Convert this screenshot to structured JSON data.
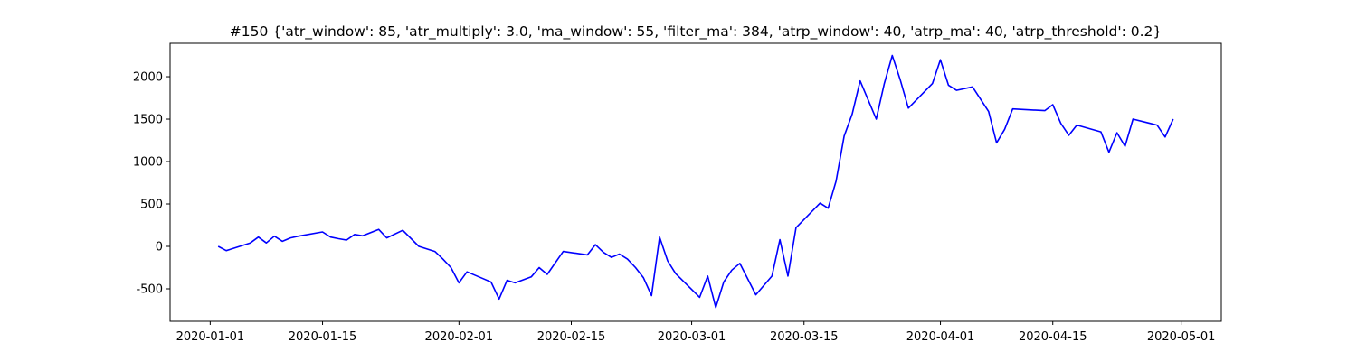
{
  "chart_data": {
    "type": "line",
    "title": "#150 {'atr_window': 85, 'atr_multiply': 3.0, 'ma_window': 55, 'filter_ma': 384, 'atrp_window': 40, 'atrp_ma': 40, 'atrp_threshold': 0.2}",
    "x": [
      "2020-01-02",
      "2020-01-03",
      "2020-01-04",
      "2020-01-06",
      "2020-01-07",
      "2020-01-08",
      "2020-01-09",
      "2020-01-10",
      "2020-01-11",
      "2020-01-12",
      "2020-01-15",
      "2020-01-16",
      "2020-01-17",
      "2020-01-18",
      "2020-01-19",
      "2020-01-20",
      "2020-01-22",
      "2020-01-23",
      "2020-01-25",
      "2020-01-27",
      "2020-01-29",
      "2020-01-30",
      "2020-01-31",
      "2020-02-01",
      "2020-02-02",
      "2020-02-04",
      "2020-02-05",
      "2020-02-06",
      "2020-02-07",
      "2020-02-08",
      "2020-02-10",
      "2020-02-11",
      "2020-02-12",
      "2020-02-14",
      "2020-02-17",
      "2020-02-18",
      "2020-02-19",
      "2020-02-20",
      "2020-02-21",
      "2020-02-22",
      "2020-02-23",
      "2020-02-24",
      "2020-02-25",
      "2020-02-26",
      "2020-02-27",
      "2020-02-28",
      "2020-03-02",
      "2020-03-03",
      "2020-03-04",
      "2020-03-05",
      "2020-03-06",
      "2020-03-07",
      "2020-03-09",
      "2020-03-11",
      "2020-03-12",
      "2020-03-13",
      "2020-03-14",
      "2020-03-17",
      "2020-03-18",
      "2020-03-19",
      "2020-03-20",
      "2020-03-21",
      "2020-03-22",
      "2020-03-24",
      "2020-03-25",
      "2020-03-26",
      "2020-03-27",
      "2020-03-28",
      "2020-03-31",
      "2020-04-01",
      "2020-04-02",
      "2020-04-03",
      "2020-04-05",
      "2020-04-07",
      "2020-04-08",
      "2020-04-09",
      "2020-04-10",
      "2020-04-14",
      "2020-04-15",
      "2020-04-16",
      "2020-04-17",
      "2020-04-18",
      "2020-04-21",
      "2020-04-22",
      "2020-04-23",
      "2020-04-24",
      "2020-04-25",
      "2020-04-28",
      "2020-04-29",
      "2020-04-30"
    ],
    "series": [
      {
        "color": "#0000ff",
        "values": [
          0,
          -50,
          -20,
          40,
          110,
          40,
          120,
          60,
          100,
          120,
          170,
          110,
          90,
          75,
          140,
          125,
          200,
          100,
          190,
          0,
          -60,
          -150,
          -250,
          -430,
          -300,
          -380,
          -420,
          -620,
          -400,
          -430,
          -360,
          -250,
          -330,
          -60,
          -100,
          20,
          -70,
          -130,
          -90,
          -150,
          -250,
          -370,
          -580,
          110,
          -170,
          -320,
          -600,
          -350,
          -720,
          -420,
          -280,
          -200,
          -570,
          -350,
          80,
          -350,
          220,
          510,
          450,
          770,
          1300,
          1560,
          1950,
          1500,
          1920,
          2250,
          1960,
          1630,
          1920,
          2200,
          1900,
          1840,
          1880,
          1590,
          1220,
          1380,
          1620,
          1600,
          1670,
          1450,
          1310,
          1430,
          1350,
          1110,
          1340,
          1180,
          1500,
          1430,
          1290,
          1500
        ]
      }
    ],
    "xlim": [
      "2019-12-27",
      "2020-05-06"
    ],
    "xticks": [
      "2020-01-01",
      "2020-01-15",
      "2020-02-01",
      "2020-02-15",
      "2020-03-01",
      "2020-03-15",
      "2020-04-01",
      "2020-04-15",
      "2020-05-01"
    ],
    "ylim": [
      -883,
      2394
    ],
    "yticks": [
      -500,
      0,
      500,
      1000,
      1500,
      2000
    ]
  }
}
